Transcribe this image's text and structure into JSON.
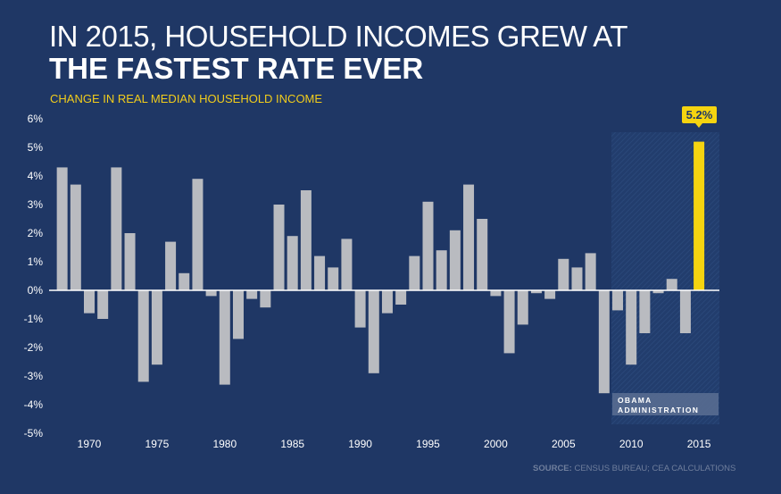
{
  "header": {
    "title_line1": "IN 2015, HOUSEHOLD INCOMES GREW AT",
    "title_line2": "THE FASTEST RATE EVER",
    "subtitle": "CHANGE IN REAL MEDIAN HOUSEHOLD INCOME"
  },
  "source": {
    "label": "SOURCE:",
    "text": " CENSUS BUREAU; CEA CALCULATIONS"
  },
  "colors": {
    "background": "#1f3765",
    "bar": "#b9bbc0",
    "highlight": "#f5d410"
  },
  "chart_data": {
    "type": "bar",
    "title": "IN 2015, HOUSEHOLD INCOMES GREW AT THE FASTEST RATE EVER",
    "subtitle": "CHANGE IN REAL MEDIAN HOUSEHOLD INCOME",
    "ylabel": "",
    "xlabel": "",
    "ylim": [
      -5,
      6
    ],
    "yticks": [
      "6%",
      "5%",
      "4%",
      "3%",
      "2%",
      "1%",
      "0%",
      "-1%",
      "-2%",
      "-3%",
      "-4%",
      "-5%"
    ],
    "xticks": [
      "1970",
      "1975",
      "1980",
      "1985",
      "1990",
      "1995",
      "2000",
      "2005",
      "2010",
      "2015"
    ],
    "categories": [
      1968,
      1969,
      1970,
      1971,
      1972,
      1973,
      1974,
      1975,
      1976,
      1977,
      1978,
      1979,
      1980,
      1981,
      1982,
      1983,
      1984,
      1985,
      1986,
      1987,
      1988,
      1989,
      1990,
      1991,
      1992,
      1993,
      1994,
      1995,
      1996,
      1997,
      1998,
      1999,
      2000,
      2001,
      2002,
      2003,
      2004,
      2005,
      2006,
      2007,
      2008,
      2009,
      2010,
      2011,
      2012,
      2013,
      2014,
      2015
    ],
    "values": [
      4.3,
      3.7,
      -0.8,
      -1.0,
      4.3,
      2.0,
      -3.2,
      -2.6,
      1.7,
      0.6,
      3.9,
      -0.2,
      -3.3,
      -1.7,
      -0.3,
      -0.6,
      3.0,
      1.9,
      3.5,
      1.2,
      0.8,
      1.8,
      -1.3,
      -2.9,
      -0.8,
      -0.5,
      1.2,
      3.1,
      1.4,
      2.1,
      3.7,
      2.5,
      -0.2,
      -2.2,
      -1.2,
      -0.1,
      -0.3,
      1.1,
      0.8,
      1.3,
      -3.6,
      -0.7,
      -2.6,
      -1.5,
      -0.1,
      0.4,
      -1.5,
      5.2
    ],
    "highlight": {
      "year": 2015,
      "label": "5.2%"
    },
    "annotation": {
      "label_line1": "OBAMA",
      "label_line2": "ADMINISTRATION",
      "range": [
        2009,
        2016
      ]
    },
    "grid": false
  }
}
